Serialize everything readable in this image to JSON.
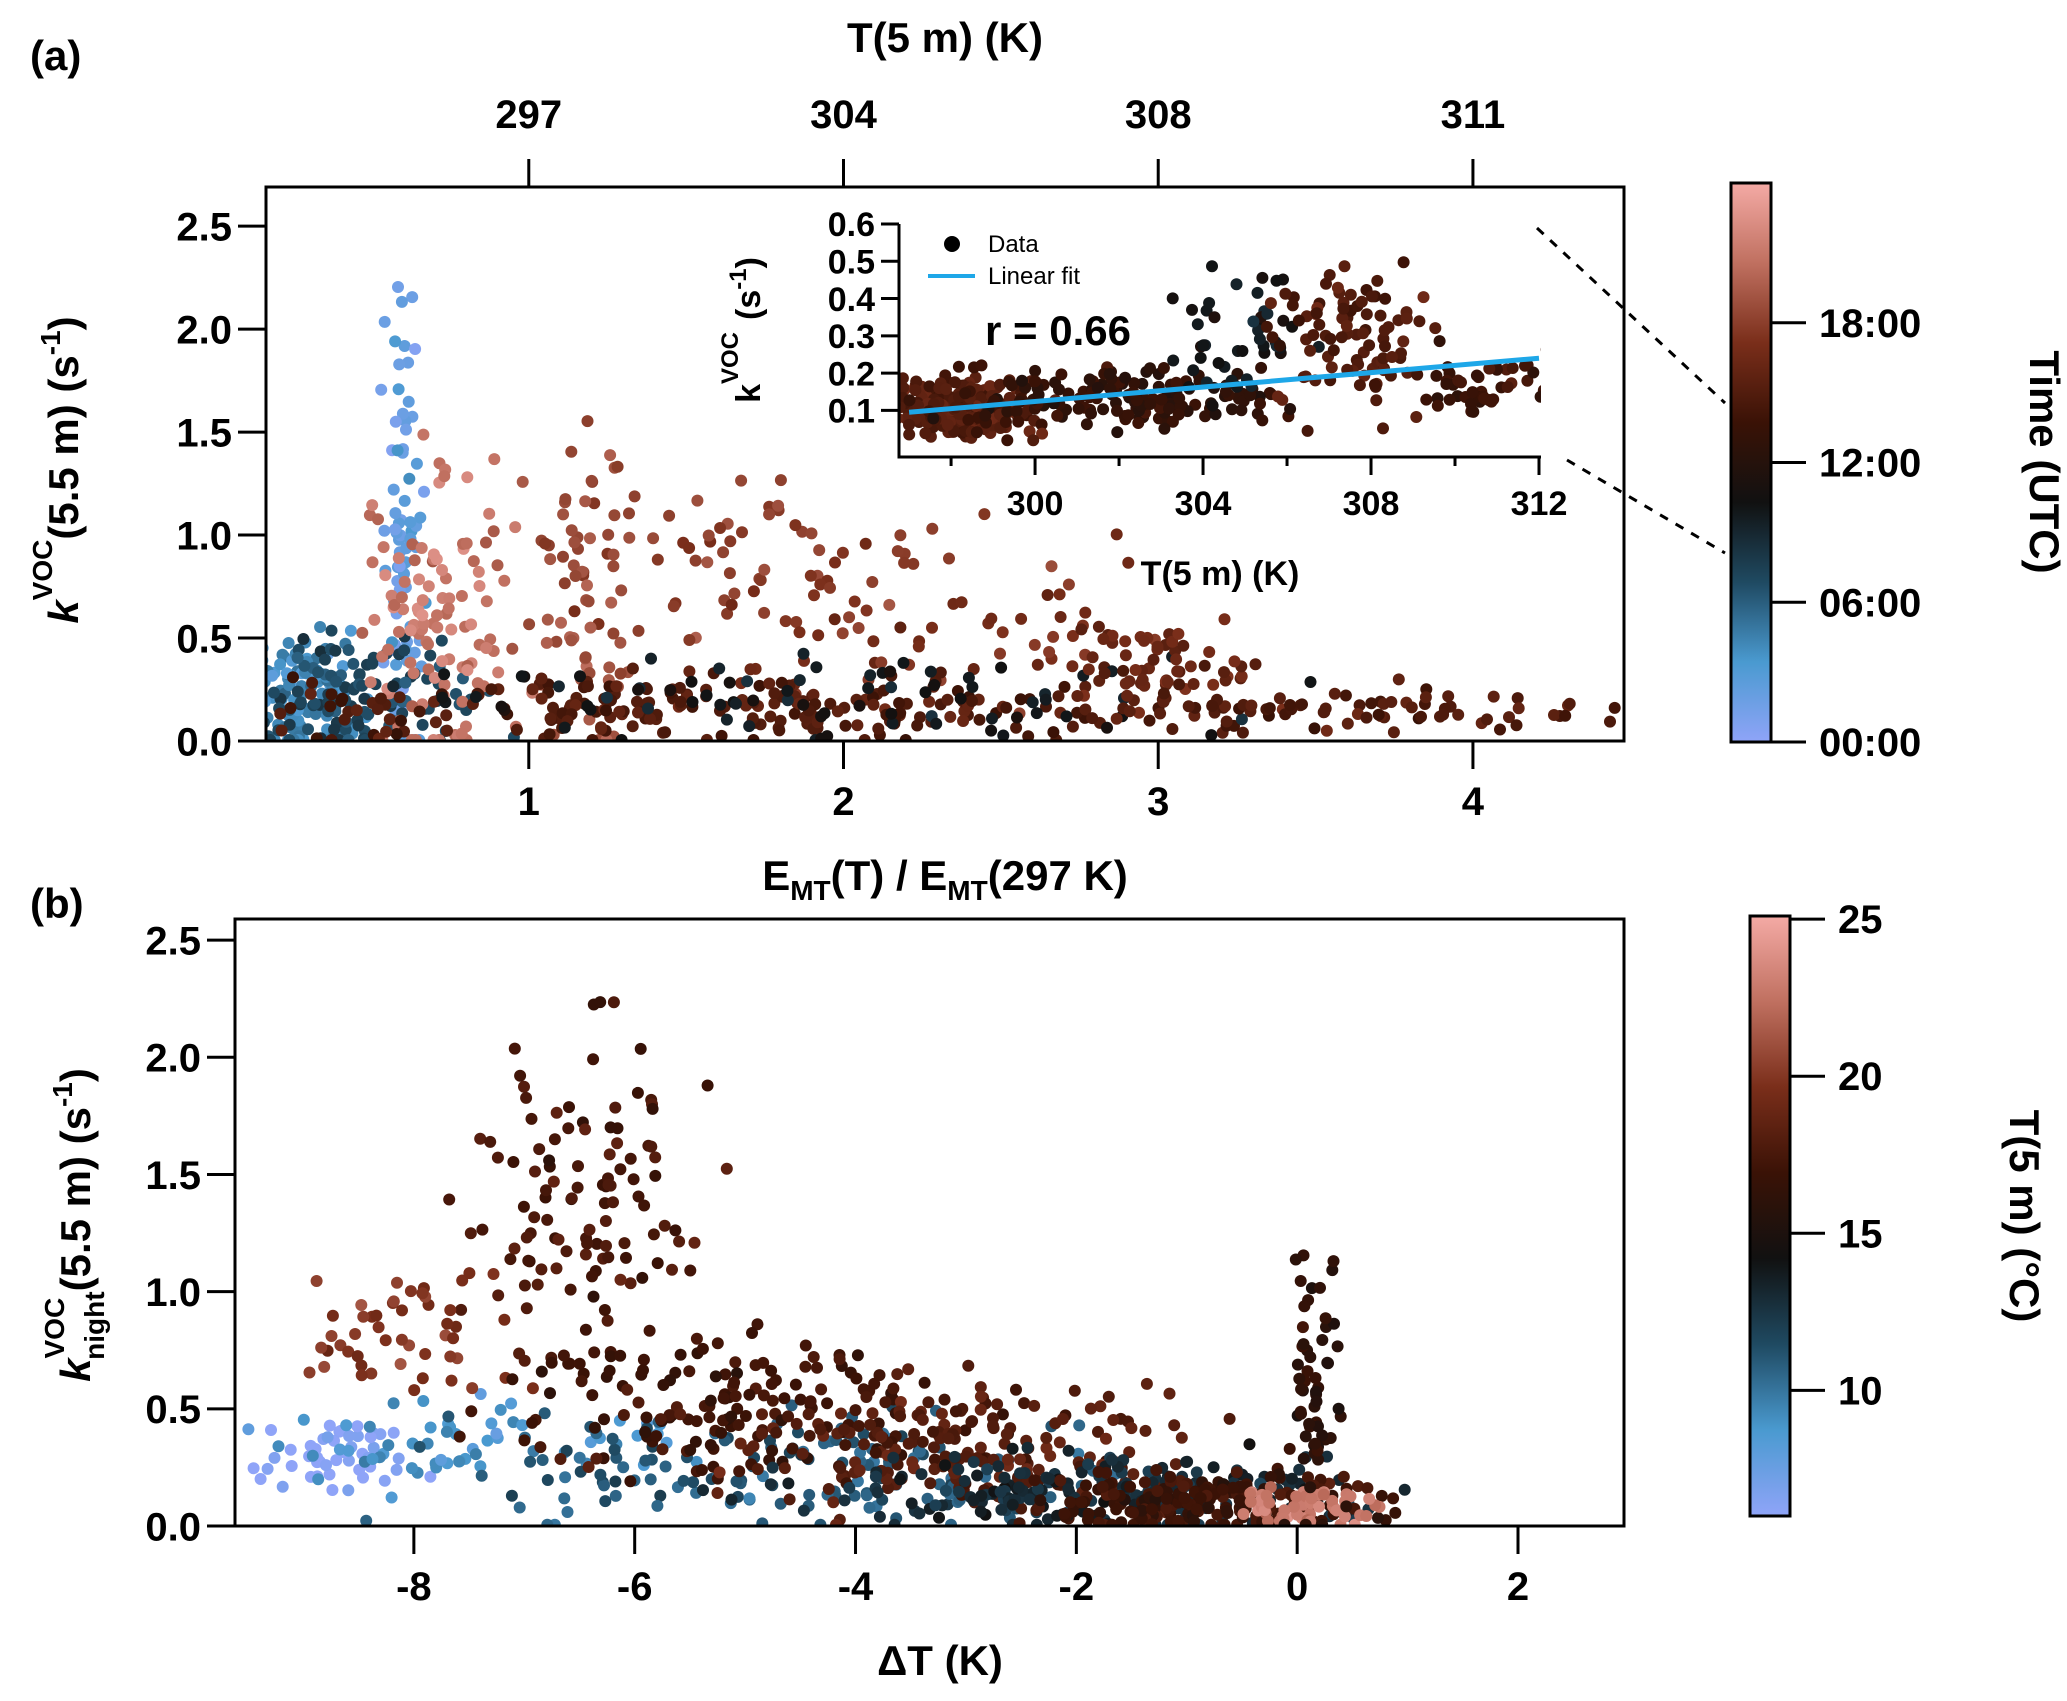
{
  "chart_data": [
    {
      "panel": "(a)",
      "type": "scatter",
      "xlabel_main": "E",
      "xlabel_sub": "MT",
      "xlabel_rest1": "(T)  / E",
      "xlabel_rest2": "(297 K)",
      "ylabel_main": "k",
      "ylabel_sup": "VOC",
      "ylabel_rest": "(5.5 m) (s",
      "ylabel_exp": "-1",
      "ylabel_close": ")",
      "top_axis_label": "T(5 m) (K)",
      "xlim": [
        0.165,
        4.48
      ],
      "ylim": [
        0,
        2.69
      ],
      "xticks": [
        1,
        2,
        3,
        4
      ],
      "xtick_labels": [
        "1",
        "2",
        "3",
        "4"
      ],
      "yticks": [
        0,
        0.5,
        1,
        1.5,
        2,
        2.5
      ],
      "ytick_labels": [
        "0.0",
        "0.5",
        "1.0",
        "1.5",
        "2.0",
        "2.5"
      ],
      "top_ticks": [
        1,
        2,
        3,
        4
      ],
      "top_tick_labels": [
        "297",
        "304",
        "308",
        "311"
      ],
      "color_variable": "Time (UTC), hours",
      "clusters_note": "points summarized as clusters [x_center, x_spread, y_center, y_spread, count, color_value]",
      "clusters": [
        [
          0.6,
          0.03,
          0.9,
          0.6,
          80,
          2
        ],
        [
          0.3,
          0.13,
          0.2,
          0.15,
          150,
          4
        ],
        [
          0.4,
          0.22,
          0.2,
          0.15,
          120,
          7
        ],
        [
          0.72,
          0.12,
          0.6,
          0.35,
          110,
          21
        ],
        [
          1.15,
          0.08,
          0.8,
          0.45,
          60,
          19
        ],
        [
          1.7,
          0.3,
          0.85,
          0.22,
          70,
          18
        ],
        [
          2.4,
          0.45,
          0.55,
          0.2,
          60,
          17
        ],
        [
          1.8,
          0.9,
          0.15,
          0.08,
          260,
          15
        ],
        [
          2.0,
          0.6,
          0.2,
          0.1,
          80,
          10
        ],
        [
          3.0,
          0.15,
          0.35,
          0.1,
          60,
          16
        ],
        [
          3.8,
          0.5,
          0.15,
          0.04,
          60,
          15
        ]
      ],
      "colorbar": {
        "label": "Time (UTC)",
        "range": [
          0,
          24
        ],
        "ticks": [
          0,
          6,
          12,
          18
        ],
        "tick_labels": [
          "00:00",
          "06:00",
          "12:00",
          "18:00"
        ]
      },
      "inset": {
        "type": "scatter",
        "xlabel": "T(5 m) (K)",
        "ylabel_main": "k",
        "ylabel_sup": "VOC",
        "ylabel_rest": "(s",
        "ylabel_exp": "-1",
        "ylabel_close": ")",
        "xlim": [
          296.76,
          312
        ],
        "ylim": [
          -0.025,
          0.6
        ],
        "xticks": [
          300,
          304,
          308,
          312
        ],
        "xtick_labels": [
          "300",
          "304",
          "308",
          "312"
        ],
        "xminor": [
          298,
          302,
          306,
          310
        ],
        "yticks": [
          0.1,
          0.2,
          0.3,
          0.4,
          0.5,
          0.6
        ],
        "ytick_labels": [
          "0.1",
          "0.2",
          "0.3",
          "0.4",
          "0.5",
          "0.6"
        ],
        "legend": [
          "Data",
          "Linear fit"
        ],
        "annotation": "r = 0.66",
        "fit_line": {
          "x": [
            297,
            312
          ],
          "y": [
            0.095,
            0.24
          ],
          "color": "#1ea7e8"
        },
        "clusters": [
          [
            298.2,
            0.9,
            0.11,
            0.04,
            260,
            15
          ],
          [
            302,
            1.8,
            0.13,
            0.04,
            160,
            13
          ],
          [
            305,
            0.9,
            0.28,
            0.08,
            45,
            10
          ],
          [
            307.5,
            1.0,
            0.3,
            0.1,
            90,
            15
          ],
          [
            310.5,
            1.0,
            0.17,
            0.04,
            50,
            14
          ]
        ]
      }
    },
    {
      "panel": "(b)",
      "type": "scatter",
      "xlabel": "ΔT (K)",
      "ylabel_main": "k",
      "ylabel_sup": "VOC",
      "ylabel_sub": "night",
      "ylabel_rest": "(5.5 m) (s",
      "ylabel_exp": "-1",
      "ylabel_close": ")",
      "xlim": [
        -9.62,
        2.96
      ],
      "ylim": [
        0,
        2.59
      ],
      "xticks": [
        -8,
        -6,
        -4,
        -2,
        0,
        2
      ],
      "xtick_labels": [
        "-8",
        "-6",
        "-4",
        "-2",
        "0",
        "2"
      ],
      "yticks": [
        0,
        0.5,
        1,
        1.5,
        2,
        2.5
      ],
      "ytick_labels": [
        "0.0",
        "0.5",
        "1.0",
        "1.5",
        "2.0",
        "2.5"
      ],
      "color_variable": "T(5 m) (°C)",
      "clusters": [
        [
          -8.8,
          0.4,
          0.3,
          0.08,
          50,
          6
        ],
        [
          -7.5,
          1.0,
          0.35,
          0.1,
          60,
          9
        ],
        [
          -4.5,
          1.5,
          0.25,
          0.12,
          150,
          11
        ],
        [
          -6.5,
          0.5,
          1.25,
          0.4,
          120,
          17.5
        ],
        [
          -8.1,
          0.5,
          0.85,
          0.15,
          50,
          20
        ],
        [
          -5.0,
          1.0,
          0.5,
          0.15,
          150,
          17
        ],
        [
          -3.0,
          1.0,
          0.35,
          0.15,
          200,
          18
        ],
        [
          -2.0,
          1.2,
          0.15,
          0.08,
          200,
          13
        ],
        [
          -0.8,
          0.8,
          0.1,
          0.06,
          200,
          17
        ],
        [
          0.1,
          0.3,
          0.08,
          0.05,
          60,
          23
        ],
        [
          0.15,
          0.12,
          0.6,
          0.35,
          60,
          16
        ]
      ],
      "colorbar": {
        "label": "T(5 m) (°C)",
        "range": [
          6,
          25.1
        ],
        "ticks": [
          10,
          15,
          20,
          25
        ],
        "tick_labels": [
          "10",
          "15",
          "20",
          "25"
        ]
      }
    }
  ],
  "colormap": [
    "#8fa4f8",
    "#4a9ad0",
    "#1f4a62",
    "#111111",
    "#3a1206",
    "#7a2e1a",
    "#c07060",
    "#f4aaa5"
  ]
}
